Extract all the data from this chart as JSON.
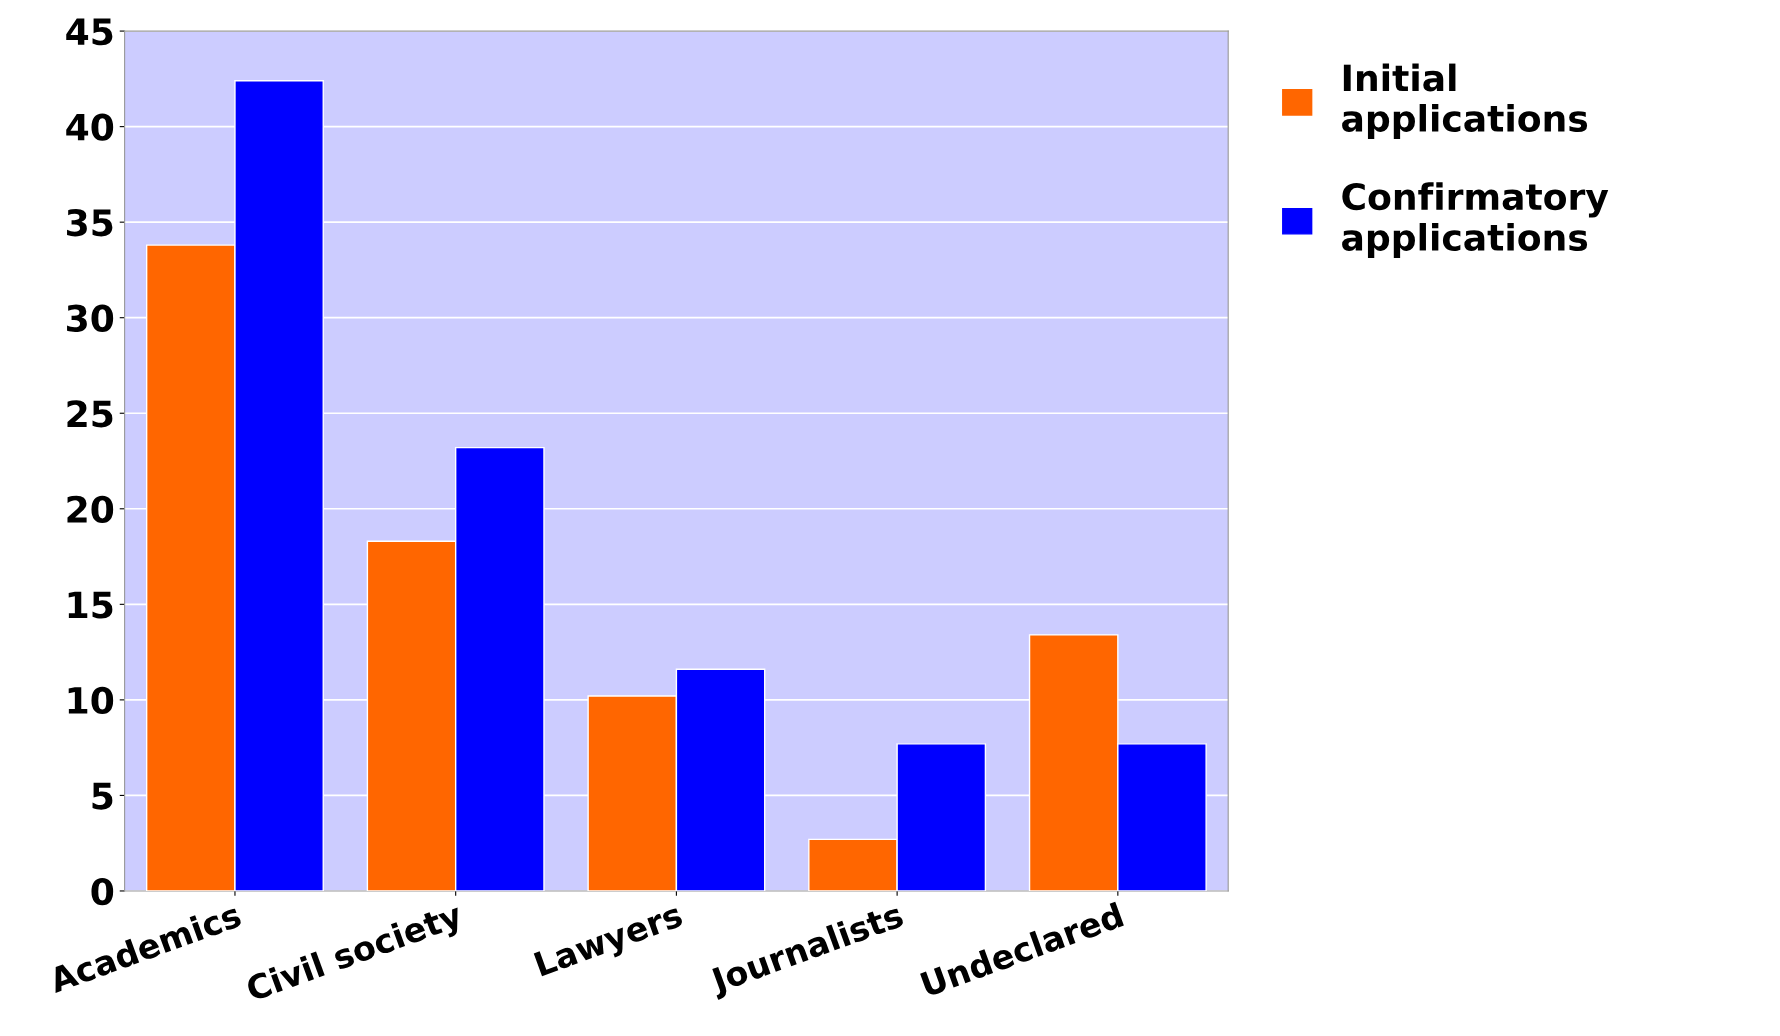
{
  "chart_data": {
    "type": "bar",
    "categories": [
      "Academics",
      "Civil society",
      "Lawyers",
      "Journalists",
      "Undeclared"
    ],
    "series": [
      {
        "name": "Initial applications",
        "color": "#ff6600",
        "values": [
          33.8,
          18.3,
          10.2,
          2.7,
          13.4
        ]
      },
      {
        "name": "Confirmatory applications",
        "color": "#0000ff",
        "values": [
          42.4,
          23.2,
          11.6,
          7.7,
          7.7
        ]
      }
    ],
    "ylim": [
      0,
      45
    ],
    "yticks": [
      0,
      5,
      10,
      15,
      20,
      25,
      30,
      35,
      40,
      45
    ],
    "grid": "y",
    "legend": "right"
  }
}
